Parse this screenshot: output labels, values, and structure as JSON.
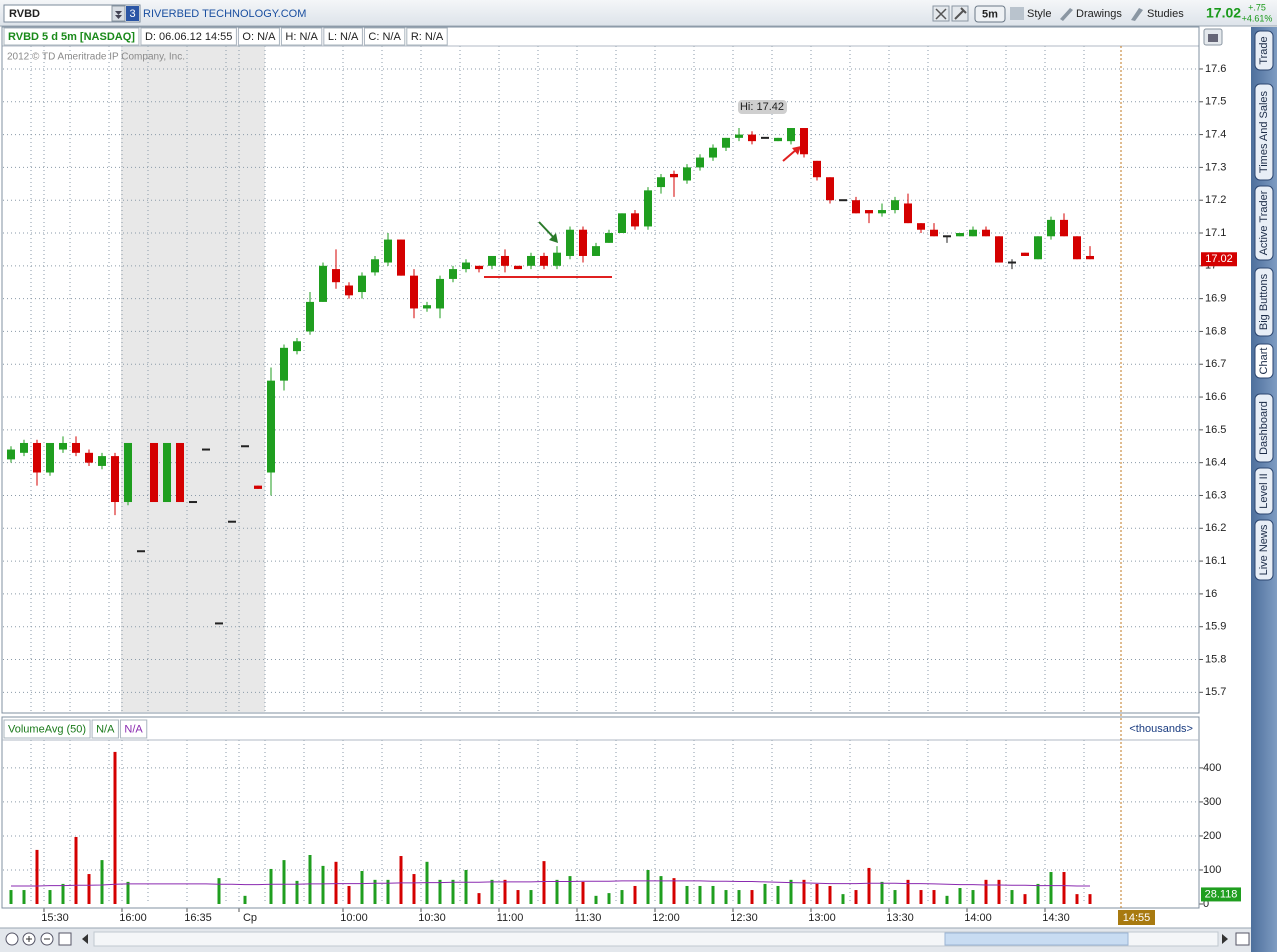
{
  "toolbar": {
    "symbol": "RVBD",
    "link_count": "3",
    "company": "RIVERBED TECHNOLOGY.COM",
    "interval": "5m",
    "buttons": [
      "Style",
      "Drawings",
      "Studies"
    ],
    "last": "17.02",
    "change": "+.75",
    "change_pct": "+4.61%"
  },
  "chart_data": {
    "type": "candlestick",
    "header": {
      "title": "RVBD 5 d 5m [NASDAQ]",
      "fields": [
        "D: 06.06.12 14:55",
        "O: N/A",
        "H: N/A",
        "L: N/A",
        "C: N/A",
        "R: N/A"
      ]
    },
    "copyright": "2012 © TD Ameritrade IP Company, Inc.",
    "categories": [
      null,
      null,
      null,
      "15:30",
      null,
      null,
      null,
      null,
      null,
      "16:00",
      null,
      null,
      null,
      null,
      "16:35",
      null,
      null,
      null,
      "Cp",
      null,
      null,
      null,
      null,
      null,
      null,
      null,
      "10:00",
      null,
      null,
      null,
      null,
      null,
      "10:30",
      null,
      null,
      null,
      null,
      null,
      "11:00",
      null,
      null,
      null,
      null,
      null,
      "11:30",
      null,
      null,
      null,
      null,
      null,
      "12:00",
      null,
      null,
      null,
      null,
      null,
      "12:30",
      null,
      null,
      null,
      null,
      null,
      "13:00",
      null,
      null,
      null,
      null,
      null,
      "13:30",
      null,
      null,
      null,
      null,
      null,
      "14:00",
      null,
      null,
      null,
      null,
      null,
      "14:30",
      null,
      null,
      null
    ],
    "open": [
      16.41,
      16.43,
      16.46,
      16.37,
      16.44,
      16.46,
      16.43,
      16.39,
      16.42,
      16.28,
      16.13,
      16.46,
      16.28,
      16.46,
      16.28,
      16.44,
      15.91,
      16.22,
      16.45,
      16.33,
      16.37,
      16.65,
      16.74,
      16.8,
      16.89,
      16.99,
      16.94,
      16.92,
      16.98,
      17.01,
      17.08,
      16.97,
      16.87,
      16.87,
      16.96,
      16.99,
      17.0,
      17.0,
      17.03,
      17.0,
      17.0,
      17.03,
      17.0,
      17.03,
      17.11,
      17.03,
      17.07,
      17.1,
      17.16,
      17.12,
      17.24,
      17.28,
      17.26,
      17.3,
      17.33,
      17.36,
      17.39,
      17.4,
      17.39,
      17.38,
      17.38,
      17.42,
      17.32,
      17.27,
      17.2,
      17.2,
      17.17,
      17.16,
      17.17,
      17.19,
      17.13,
      17.11,
      17.09,
      17.09,
      17.09,
      17.11,
      17.09,
      17.01,
      17.04,
      17.02,
      17.09,
      17.14,
      17.09,
      17.03
    ],
    "high": [
      16.45,
      16.47,
      16.47,
      16.46,
      16.48,
      16.48,
      16.44,
      16.43,
      16.43,
      16.46,
      16.13,
      16.46,
      16.46,
      16.46,
      16.28,
      16.44,
      15.91,
      16.22,
      16.45,
      16.33,
      16.69,
      16.76,
      16.78,
      16.92,
      17.01,
      17.05,
      16.95,
      16.98,
      17.03,
      17.1,
      17.08,
      16.99,
      16.89,
      16.97,
      17.0,
      17.02,
      17.0,
      17.03,
      17.05,
      17.0,
      17.04,
      17.04,
      17.06,
      17.12,
      17.12,
      17.07,
      17.11,
      17.16,
      17.17,
      17.24,
      17.28,
      17.29,
      17.31,
      17.34,
      17.37,
      17.39,
      17.42,
      17.41,
      17.39,
      17.39,
      17.42,
      17.42,
      17.32,
      17.27,
      17.2,
      17.21,
      17.17,
      17.19,
      17.21,
      17.22,
      17.13,
      17.13,
      17.09,
      17.1,
      17.12,
      17.12,
      17.09,
      17.02,
      17.04,
      17.09,
      17.15,
      17.16,
      17.09,
      17.06
    ],
    "low": [
      16.4,
      16.42,
      16.33,
      16.36,
      16.43,
      16.42,
      16.39,
      16.38,
      16.24,
      16.27,
      16.13,
      16.28,
      16.28,
      16.28,
      16.28,
      16.44,
      15.91,
      16.22,
      16.45,
      16.32,
      16.3,
      16.62,
      16.73,
      16.79,
      16.89,
      16.93,
      16.9,
      16.9,
      16.97,
      17.0,
      16.97,
      16.84,
      16.86,
      16.84,
      16.95,
      16.98,
      16.98,
      16.99,
      16.98,
      16.99,
      16.99,
      16.99,
      16.99,
      17.02,
      17.01,
      17.03,
      17.07,
      17.1,
      17.11,
      17.11,
      17.22,
      17.21,
      17.25,
      17.29,
      17.32,
      17.35,
      17.38,
      17.37,
      17.39,
      17.38,
      17.37,
      17.33,
      17.26,
      17.19,
      17.2,
      17.16,
      17.13,
      17.15,
      17.16,
      17.13,
      17.1,
      17.09,
      17.07,
      17.09,
      17.09,
      17.09,
      17.01,
      16.99,
      17.03,
      17.02,
      17.08,
      17.09,
      17.02,
      17.02
    ],
    "close": [
      16.44,
      16.46,
      16.37,
      16.46,
      16.46,
      16.43,
      16.4,
      16.42,
      16.28,
      16.46,
      16.13,
      16.28,
      16.46,
      16.28,
      16.28,
      16.44,
      15.91,
      16.22,
      16.45,
      16.32,
      16.65,
      16.75,
      16.77,
      16.89,
      17.0,
      16.95,
      16.91,
      16.97,
      17.02,
      17.08,
      16.97,
      16.87,
      16.88,
      16.96,
      16.99,
      17.01,
      16.99,
      17.03,
      17.0,
      16.99,
      17.03,
      17.0,
      17.04,
      17.11,
      17.03,
      17.06,
      17.1,
      17.16,
      17.12,
      17.23,
      17.27,
      17.27,
      17.3,
      17.33,
      17.36,
      17.39,
      17.4,
      17.38,
      17.39,
      17.39,
      17.42,
      17.34,
      17.27,
      17.2,
      17.2,
      17.16,
      17.16,
      17.17,
      17.2,
      17.13,
      17.11,
      17.09,
      17.09,
      17.1,
      17.11,
      17.09,
      17.01,
      17.01,
      17.03,
      17.09,
      17.14,
      17.09,
      17.02,
      17.02
    ],
    "up_color": "#1f9e1f",
    "down_color": "#d40000",
    "flat_color": "#222222",
    "ylim": [
      15.64,
      17.67
    ],
    "yticks": [
      15.7,
      15.8,
      15.9,
      16,
      16.1,
      16.2,
      16.3,
      16.4,
      16.5,
      16.6,
      16.7,
      16.8,
      16.9,
      17,
      17.1,
      17.2,
      17.3,
      17.4,
      17.5,
      17.6
    ],
    "grid": true,
    "last_price": 17.02,
    "high_label": {
      "value": 17.42,
      "label": "Hi: 17.42"
    },
    "current_time_label": "14:55",
    "volume": {
      "title": "VolumeAvg (50)",
      "fields": [
        "N/A",
        "N/A"
      ],
      "unit_label": "<thousands>",
      "values": [
        41,
        41,
        159,
        41,
        59,
        197,
        88,
        129,
        447,
        65,
        0,
        0,
        0,
        0,
        0,
        0,
        76,
        0,
        24,
        0,
        103,
        129,
        68,
        144,
        112,
        124,
        53,
        97,
        71,
        71,
        141,
        88,
        124,
        71,
        71,
        100,
        32,
        71,
        71,
        41,
        41,
        126,
        71,
        82,
        65,
        24,
        32,
        41,
        53,
        100,
        82,
        76,
        53,
        53,
        53,
        41,
        41,
        41,
        59,
        53,
        71,
        71,
        59,
        53,
        29,
        41,
        106,
        65,
        41,
        71,
        41,
        41,
        24,
        47,
        41,
        71,
        71,
        41,
        29,
        59,
        94,
        94,
        29,
        29
      ],
      "avg": [
        53,
        53,
        53,
        54,
        54,
        55,
        55,
        56,
        58,
        59,
        59,
        59,
        59,
        59,
        59,
        59,
        58,
        58,
        57,
        57,
        58,
        58,
        58,
        59,
        59,
        60,
        60,
        60,
        61,
        61,
        62,
        62,
        63,
        63,
        64,
        64,
        64,
        65,
        65,
        65,
        65,
        66,
        66,
        66,
        67,
        67,
        67,
        68,
        68,
        68,
        68,
        68,
        68,
        68,
        67,
        67,
        66,
        66,
        65,
        64,
        63,
        62,
        61,
        60,
        60,
        60,
        61,
        61,
        61,
        60,
        60,
        59,
        58,
        57,
        57,
        56,
        56,
        55,
        55,
        54,
        54,
        54,
        53,
        53
      ],
      "avg_color": "#8a2ab0",
      "ylim": [
        0,
        482
      ],
      "yticks": [
        0,
        100,
        200,
        300,
        400
      ],
      "last_value": 28.118
    }
  },
  "sidebar": {
    "tabs": [
      "Trade",
      "Times And Sales",
      "Active Trader",
      "Big Buttons",
      "Chart",
      "Dashboard",
      "Level II",
      "Live News"
    ]
  }
}
